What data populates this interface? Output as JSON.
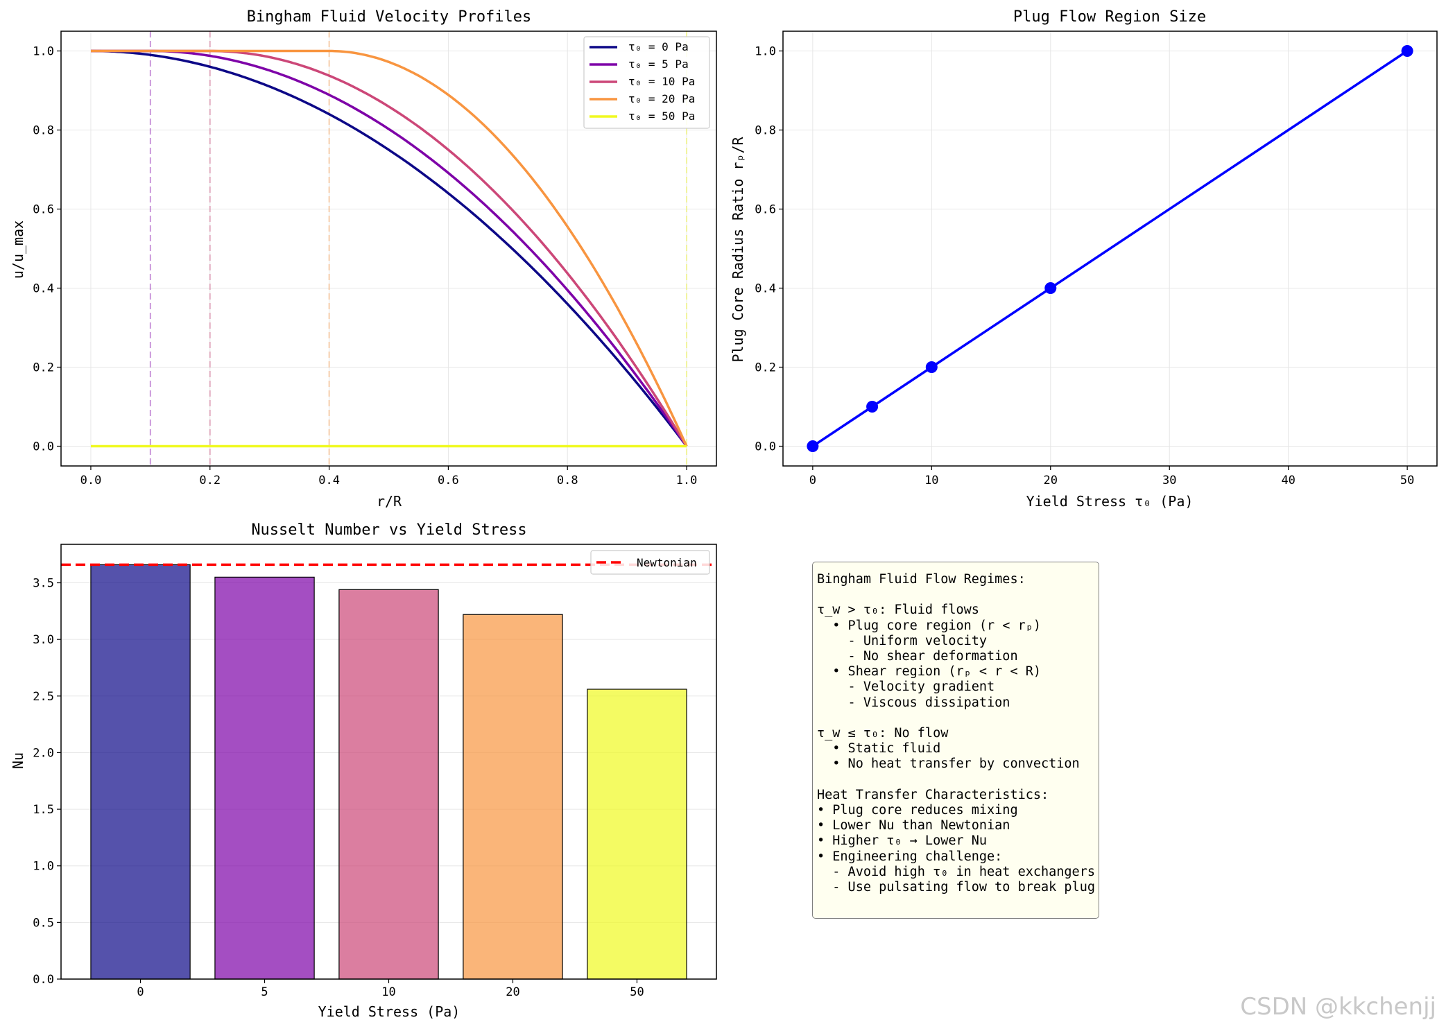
{
  "chart_data": [
    {
      "type": "line",
      "title": "Bingham Fluid Velocity Profiles",
      "xlabel": "r/R",
      "ylabel": "u/u_max",
      "xlim": [
        -0.05,
        1.05
      ],
      "ylim": [
        -0.05,
        1.05
      ],
      "xticks": [
        "0.0",
        "0.2",
        "0.4",
        "0.6",
        "0.8",
        "1.0"
      ],
      "yticks": [
        "0.0",
        "0.2",
        "0.4",
        "0.6",
        "0.8",
        "1.0"
      ],
      "grid": true,
      "legend_position": "upper right",
      "series": [
        {
          "name": "τ₀ = 0 Pa",
          "plug_radius": 0.0,
          "color": "#0d0887"
        },
        {
          "name": "τ₀ = 5 Pa",
          "plug_radius": 0.1,
          "color": "#7e03a8"
        },
        {
          "name": "τ₀ = 10 Pa",
          "plug_radius": 0.2,
          "color": "#cc4778"
        },
        {
          "name": "τ₀ = 20 Pa",
          "plug_radius": 0.4,
          "color": "#f89540"
        },
        {
          "name": "τ₀ = 50 Pa",
          "plug_radius": 1.0,
          "color": "#f0f921",
          "flat_zero": true
        }
      ],
      "plug_boundaries": [
        0.1,
        0.2,
        0.4,
        1.0
      ]
    },
    {
      "type": "line",
      "title": "Plug Flow Region Size",
      "xlabel": "Yield Stress τ₀ (Pa)",
      "ylabel": "Plug Core Radius Ratio rₚ/R",
      "xlim": [
        -2.5,
        52.5
      ],
      "ylim": [
        -0.05,
        1.05
      ],
      "xticks": [
        "0",
        "10",
        "20",
        "30",
        "40",
        "50"
      ],
      "yticks": [
        "0.0",
        "0.2",
        "0.4",
        "0.6",
        "0.8",
        "1.0"
      ],
      "grid": true,
      "color": "#0000ff",
      "x": [
        0,
        5,
        10,
        20,
        50
      ],
      "y": [
        0.0,
        0.1,
        0.2,
        0.4,
        1.0
      ]
    },
    {
      "type": "bar",
      "title": "Nusselt Number vs Yield Stress",
      "xlabel": "Yield Stress (Pa)",
      "ylabel": "Nu",
      "categories": [
        "0",
        "5",
        "10",
        "20",
        "50"
      ],
      "values": [
        3.66,
        3.55,
        3.44,
        3.22,
        2.56
      ],
      "colors": [
        "#0d0887",
        "#7e03a8",
        "#cc4778",
        "#f89540",
        "#f0f921"
      ],
      "ylim": [
        0,
        3.84
      ],
      "yticks": [
        "0.0",
        "0.5",
        "1.0",
        "1.5",
        "2.0",
        "2.5",
        "3.0",
        "3.5"
      ],
      "grid": true,
      "reference_line": {
        "name": "Newtonian",
        "value": 3.66,
        "color": "#ff0000"
      },
      "legend_position": "upper right"
    }
  ],
  "info_box": {
    "lines": [
      "Bingham Fluid Flow Regimes:",
      "",
      "τ_w > τ₀: Fluid flows",
      "  • Plug core region (r < rₚ)",
      "    - Uniform velocity",
      "    - No shear deformation",
      "  • Shear region (rₚ < r < R)",
      "    - Velocity gradient",
      "    - Viscous dissipation",
      "",
      "τ_w ≤ τ₀: No flow",
      "  • Static fluid",
      "  • No heat transfer by convection",
      "",
      "Heat Transfer Characteristics:",
      "• Plug core reduces mixing",
      "• Lower Nu than Newtonian",
      "• Higher τ₀ → Lower Nu",
      "• Engineering challenge:",
      "  - Avoid high τ₀ in heat exchangers",
      "  - Use pulsating flow to break plug"
    ]
  },
  "watermark": "CSDN @kkchenjj"
}
